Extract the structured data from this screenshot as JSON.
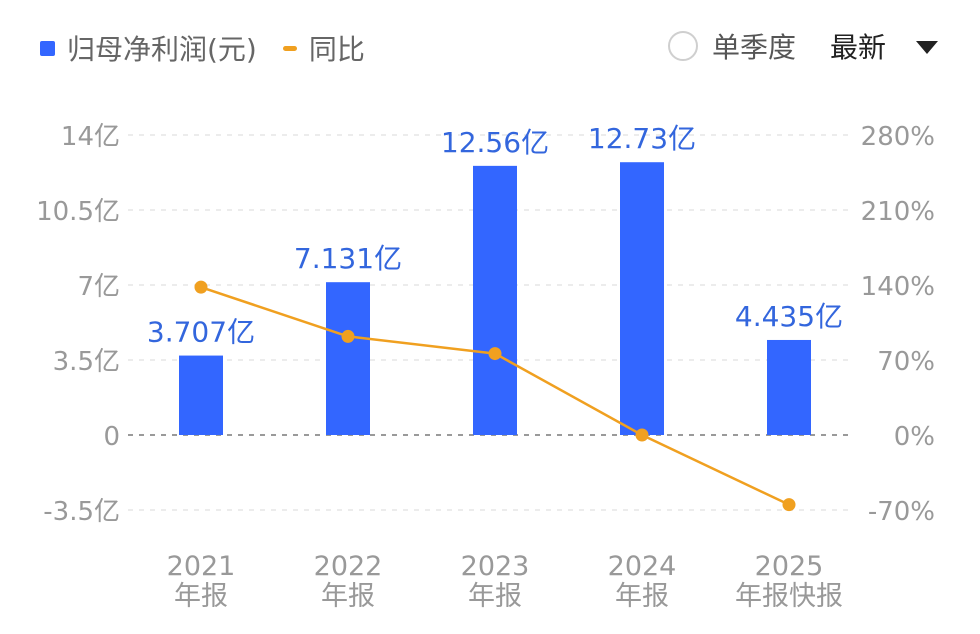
{
  "legend": {
    "bar_label": "归母净利润(元)",
    "line_label": "同比"
  },
  "controls": {
    "quarter_label": "单季度",
    "period_selected": "最新"
  },
  "colors": {
    "bar": "#3366ff",
    "line": "#f0a020",
    "axis_text": "#999999",
    "bar_label": "#3366dd"
  },
  "chart_data": {
    "type": "bar",
    "categories": [
      "2021\n年报",
      "2022\n年报",
      "2023\n年报",
      "2024\n年报",
      "2025\n年报快报"
    ],
    "series": [
      {
        "name": "归母净利润(元)",
        "type": "bar",
        "axis": "left",
        "values": [
          3.707,
          7.131,
          12.56,
          12.73,
          4.435
        ],
        "labels": [
          "3.707亿",
          "7.131亿",
          "12.56亿",
          "12.73亿",
          "4.435亿"
        ]
      },
      {
        "name": "同比",
        "type": "line",
        "axis": "right",
        "values": [
          138,
          92,
          76,
          0,
          -65
        ]
      }
    ],
    "y_left": {
      "min": -3.5,
      "max": 14,
      "ticks": [
        14,
        10.5,
        7,
        3.5,
        0,
        -3.5
      ],
      "tick_labels": [
        "14亿",
        "10.5亿",
        "7亿",
        "3.5亿",
        "0",
        "-3.5亿"
      ]
    },
    "y_right": {
      "min": -70,
      "max": 280,
      "ticks": [
        280,
        210,
        140,
        70,
        0,
        -70
      ],
      "tick_labels": [
        "280%",
        "210%",
        "140%",
        "70%",
        "0%",
        "-70%"
      ]
    },
    "grid": true
  }
}
